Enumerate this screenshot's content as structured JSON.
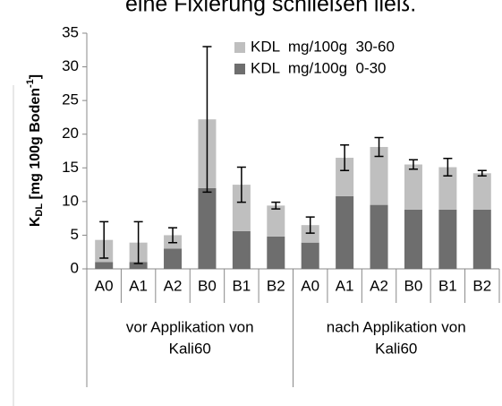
{
  "page_text": "eine Fixierung schließen ließ.",
  "chart_data": {
    "type": "bar",
    "stacked": true,
    "y_label": {
      "main": "K",
      "sub": "DL",
      "rest": " [mg 100g Boden",
      "sup": "-1",
      "end": "]"
    },
    "categories": [
      "A0",
      "A1",
      "A2",
      "B0",
      "B1",
      "B2",
      "A0",
      "A1",
      "A2",
      "B0",
      "B1",
      "B2"
    ],
    "groups": [
      {
        "lines": [
          "vor Applikation von",
          "Kali60"
        ],
        "size": 6
      },
      {
        "lines": [
          "nach Applikation von",
          "Kali60"
        ],
        "size": 6
      }
    ],
    "series": [
      {
        "name": "KDL  mg/100g  30-60",
        "color": "#bfbfbf",
        "values": [
          3.3,
          2.9,
          2.0,
          10.2,
          6.9,
          4.6,
          2.6,
          5.7,
          8.6,
          6.7,
          6.3,
          5.4
        ],
        "errors": [
          2.7,
          3.1,
          1.1,
          10.8,
          2.6,
          0.5,
          1.2,
          1.9,
          1.4,
          0.7,
          1.3,
          0.4
        ]
      },
      {
        "name": "KDL  mg/100g  0-30",
        "color": "#6e6e6e",
        "values": [
          1.0,
          1.0,
          3.0,
          12.0,
          5.6,
          4.8,
          3.9,
          10.8,
          9.5,
          8.8,
          8.8,
          8.8
        ]
      }
    ],
    "ylim": [
      0,
      35
    ],
    "yticks": [
      0,
      5,
      10,
      15,
      20,
      25,
      30,
      35
    ],
    "grid": false,
    "legend": "top"
  }
}
